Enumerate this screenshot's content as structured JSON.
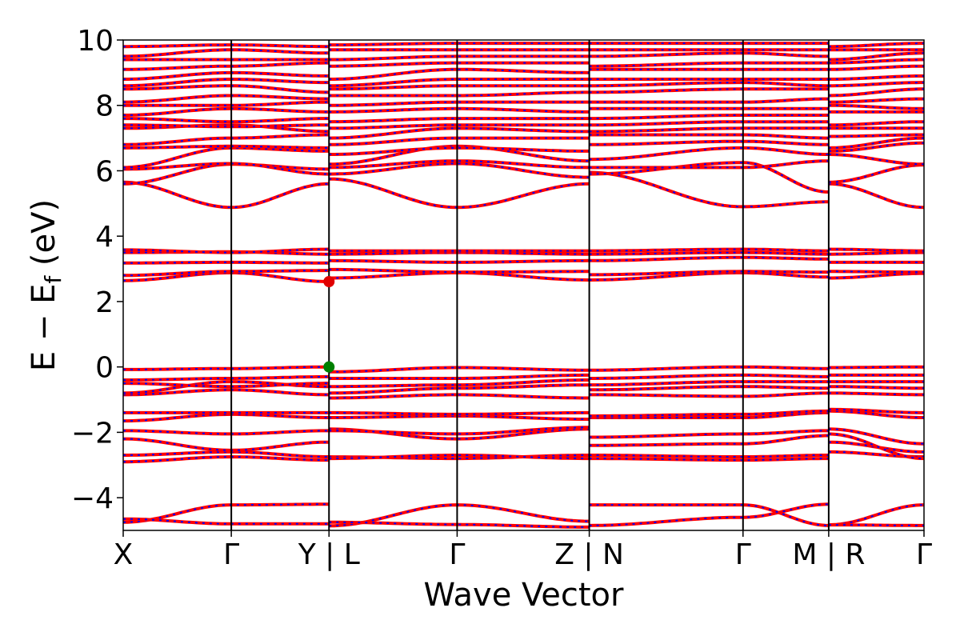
{
  "chart_data": {
    "type": "line",
    "title": "",
    "xlabel": "Wave Vector",
    "ylabel": "E − E_f (eV)",
    "ylabel_parts": {
      "main": "E − E",
      "sub": "f",
      "unit": " (eV)"
    },
    "ylim": [
      -5,
      10
    ],
    "yticks": [
      -4,
      -2,
      0,
      2,
      4,
      6,
      8,
      10
    ],
    "ytick_labels": [
      "−4",
      "−2",
      "0",
      "2",
      "4",
      "6",
      "8",
      "10"
    ],
    "path_segments": [
      {
        "labels": [
          "X",
          "Γ",
          "Y"
        ],
        "knots": [
          0,
          0.135,
          0.257
        ]
      },
      {
        "labels": [
          "L",
          "Γ",
          "Z"
        ],
        "knots": [
          0.257,
          0.417,
          0.582
        ]
      },
      {
        "labels": [
          "N",
          "Γ",
          "M"
        ],
        "knots": [
          0.582,
          0.774,
          0.881
        ]
      },
      {
        "labels": [
          "R",
          "Γ"
        ],
        "knots": [
          0.881,
          1.0
        ]
      }
    ],
    "xtick_labels": [
      {
        "pos": 0,
        "text": "X"
      },
      {
        "pos": 0.135,
        "text": "Γ"
      },
      {
        "pos": 0.257,
        "text": "Y | L"
      },
      {
        "pos": 0.417,
        "text": "Γ"
      },
      {
        "pos": 0.582,
        "text": "Z | N"
      },
      {
        "pos": 0.774,
        "text": "Γ"
      },
      {
        "pos": 0.881,
        "text": "M | R"
      },
      {
        "pos": 1.0,
        "text": "Γ"
      }
    ],
    "series_colors": {
      "spin_up": "#ff0000",
      "spin_down": "#0000ff"
    },
    "markers": [
      {
        "name": "CBM",
        "x": 0.257,
        "y": 2.61,
        "color": "#e00000"
      },
      {
        "name": "VBM",
        "x": 0.257,
        "y": 0.0,
        "color": "#008000"
      }
    ],
    "bands": [
      [
        -4.75,
        -4.22,
        -4.2,
        -4.86,
        -4.22,
        -4.72,
        -4.85,
        -4.6,
        -4.2,
        -4.83,
        -4.22
      ],
      [
        -4.65,
        -4.8,
        -4.8,
        -4.75,
        -4.82,
        -4.9,
        -4.22,
        -4.22,
        -4.85,
        -4.83,
        -4.85
      ],
      [
        -2.9,
        -2.75,
        -2.85,
        -2.75,
        -2.8,
        -2.7,
        -2.8,
        -2.85,
        -2.8,
        -2.3,
        -2.6
      ],
      [
        -2.7,
        -2.6,
        -2.75,
        -2.8,
        -2.7,
        -2.8,
        -2.7,
        -2.75,
        -2.7,
        -2.6,
        -2.75
      ],
      [
        -2.2,
        -2.55,
        -2.3,
        -1.9,
        -2.2,
        -1.9,
        -2.4,
        -2.35,
        -2.1,
        -2.05,
        -2.8
      ],
      [
        -1.95,
        -2.05,
        -1.95,
        -1.95,
        -2.05,
        -1.85,
        -2.15,
        -2.05,
        -1.95,
        -1.9,
        -2.35
      ],
      [
        -1.65,
        -1.45,
        -1.55,
        -1.55,
        -1.5,
        -1.6,
        -1.55,
        -1.55,
        -1.4,
        -1.35,
        -1.55
      ],
      [
        -1.4,
        -1.4,
        -1.4,
        -1.4,
        -1.45,
        -1.4,
        -1.5,
        -1.45,
        -1.35,
        -1.3,
        -1.4
      ],
      [
        -0.85,
        -0.7,
        -0.85,
        -0.95,
        -0.85,
        -0.95,
        -0.85,
        -0.9,
        -0.8,
        -0.8,
        -0.85
      ],
      [
        -0.8,
        -0.45,
        -0.6,
        -0.8,
        -0.65,
        -0.55,
        -0.7,
        -0.6,
        -0.65,
        -0.6,
        -0.65
      ],
      [
        -0.5,
        -0.6,
        -0.5,
        -0.6,
        -0.55,
        -0.4,
        -0.55,
        -0.45,
        -0.45,
        -0.45,
        -0.45
      ],
      [
        -0.4,
        -0.35,
        -0.3,
        -0.35,
        -0.35,
        -0.25,
        -0.35,
        -0.25,
        -0.3,
        -0.25,
        -0.25
      ],
      [
        -0.08,
        -0.05,
        0.0,
        -0.15,
        -0.02,
        -0.1,
        -0.1,
        0.0,
        -0.05,
        -0.02,
        0.0
      ],
      [
        2.64,
        2.88,
        2.61,
        2.72,
        2.88,
        2.66,
        2.66,
        2.88,
        2.75,
        2.72,
        2.86
      ],
      [
        2.8,
        2.92,
        2.95,
        2.98,
        2.9,
        2.92,
        2.82,
        2.92,
        2.9,
        2.92,
        2.9
      ],
      [
        3.18,
        3.2,
        3.18,
        3.25,
        3.2,
        3.25,
        3.25,
        3.35,
        3.3,
        3.2,
        3.2
      ],
      [
        3.5,
        3.52,
        3.45,
        3.45,
        3.5,
        3.45,
        3.45,
        3.5,
        3.45,
        3.45,
        3.5
      ],
      [
        3.58,
        3.5,
        3.6,
        3.55,
        3.55,
        3.55,
        3.55,
        3.6,
        3.55,
        3.6,
        3.55
      ],
      [
        5.65,
        4.88,
        5.6,
        5.75,
        4.88,
        5.6,
        5.95,
        4.9,
        5.05,
        5.6,
        4.88
      ],
      [
        5.6,
        6.2,
        6.05,
        5.9,
        6.22,
        5.8,
        5.9,
        6.25,
        5.35,
        5.65,
        6.18
      ],
      [
        6.05,
        6.22,
        5.9,
        6.1,
        6.3,
        6.1,
        6.1,
        6.1,
        6.3,
        6.5,
        6.2
      ],
      [
        6.1,
        6.7,
        6.6,
        6.2,
        6.75,
        6.3,
        6.35,
        6.7,
        6.5,
        6.6,
        6.85
      ],
      [
        6.7,
        6.75,
        6.7,
        6.5,
        6.7,
        6.6,
        6.8,
        6.9,
        6.8,
        6.7,
        7.0
      ],
      [
        6.8,
        7.0,
        7.1,
        6.8,
        7.0,
        7.0,
        7.1,
        7.1,
        7.0,
        7.05,
        7.1
      ],
      [
        7.3,
        7.4,
        7.2,
        7.0,
        7.3,
        7.2,
        7.2,
        7.3,
        7.3,
        7.3,
        7.3
      ],
      [
        7.4,
        7.35,
        7.4,
        7.3,
        7.4,
        7.4,
        7.4,
        7.5,
        7.5,
        7.4,
        7.5
      ],
      [
        7.6,
        7.5,
        7.6,
        7.5,
        7.6,
        7.6,
        7.6,
        7.7,
        7.7,
        7.8,
        7.8
      ],
      [
        7.7,
        7.9,
        7.8,
        7.8,
        7.9,
        7.8,
        7.9,
        7.9,
        7.9,
        8.0,
        7.9
      ],
      [
        8.0,
        8.0,
        8.1,
        8.0,
        8.1,
        8.1,
        8.1,
        8.1,
        8.2,
        8.1,
        8.2
      ],
      [
        8.1,
        8.3,
        8.2,
        8.3,
        8.3,
        8.4,
        8.4,
        8.5,
        8.5,
        8.3,
        8.5
      ],
      [
        8.5,
        8.6,
        8.4,
        8.5,
        8.6,
        8.6,
        8.6,
        8.7,
        8.6,
        8.6,
        8.7
      ],
      [
        8.6,
        8.8,
        8.7,
        8.6,
        8.8,
        8.8,
        8.8,
        8.8,
        8.8,
        8.8,
        8.9
      ],
      [
        8.8,
        9.0,
        8.9,
        8.8,
        9.1,
        9.0,
        9.1,
        9.1,
        9.1,
        9.1,
        9.2
      ],
      [
        9.1,
        9.2,
        9.3,
        9.2,
        9.3,
        9.3,
        9.2,
        9.3,
        9.3,
        9.3,
        9.4
      ],
      [
        9.4,
        9.4,
        9.4,
        9.4,
        9.5,
        9.5,
        9.5,
        9.6,
        9.5,
        9.4,
        9.6
      ],
      [
        9.5,
        9.7,
        9.6,
        9.7,
        9.7,
        9.7,
        9.7,
        9.7,
        9.7,
        9.7,
        9.7
      ],
      [
        9.8,
        9.85,
        9.8,
        9.85,
        9.9,
        9.9,
        9.9,
        9.9,
        9.9,
        9.8,
        9.9
      ]
    ]
  }
}
